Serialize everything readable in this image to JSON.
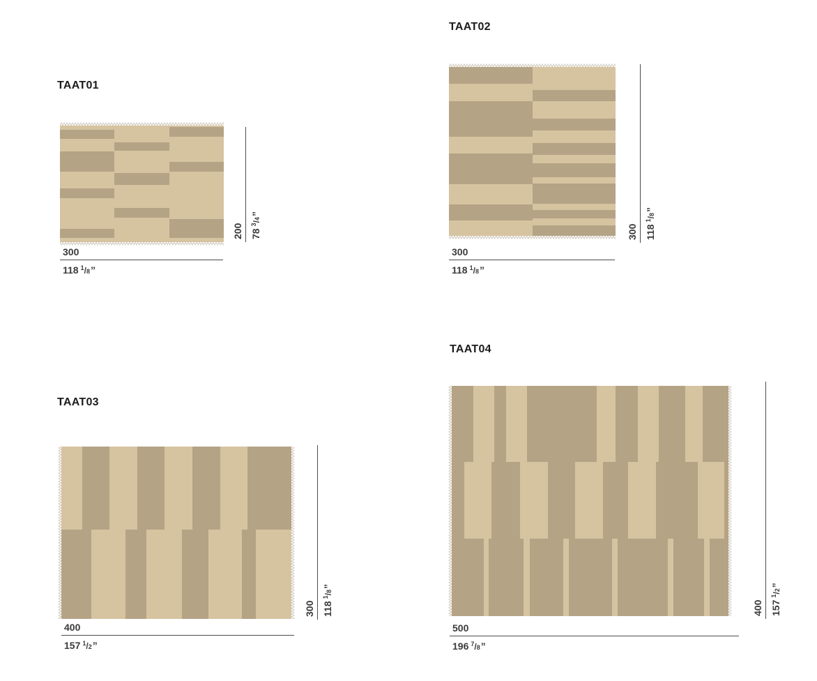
{
  "meta": {
    "colors": {
      "light": "#d6c3a0",
      "dark": "#b5a386",
      "fringe": "#d0cabd",
      "line": "#4a4a4b",
      "text": "#3b3b3c",
      "title": "#1c1c1c"
    },
    "inch_mark": "”",
    "frac_slash": "/"
  },
  "rugs": [
    {
      "title": "TAAT01",
      "width": {
        "cm": "300",
        "in_main": "118",
        "frac_num": "1",
        "frac_den": "8"
      },
      "height": {
        "cm": "200",
        "in_main": "78",
        "frac_num": "3",
        "frac_den": "4"
      },
      "base_color": "light",
      "stripe_color": "dark",
      "fringe_edges": [
        "top",
        "bottom"
      ],
      "stripes": [
        [
          0,
          3.5,
          33.3,
          7.7
        ],
        [
          0,
          22,
          33.3,
          17.8
        ],
        [
          0,
          54,
          33.3,
          8.5
        ],
        [
          0,
          88.4,
          33.3,
          8.3
        ],
        [
          33.3,
          14.5,
          33.6,
          7.2
        ],
        [
          33.3,
          40.8,
          33.6,
          10.3
        ],
        [
          33.3,
          70.4,
          33.6,
          8.6
        ],
        [
          66.9,
          1.4,
          33.1,
          8.3
        ],
        [
          66.9,
          31,
          33.1,
          8.4
        ],
        [
          66.9,
          80.1,
          33.1,
          16.6
        ]
      ]
    },
    {
      "title": "TAAT02",
      "width": {
        "cm": "300",
        "in_main": "118",
        "frac_num": "1",
        "frac_den": "8"
      },
      "height": {
        "cm": "300",
        "in_main": "118",
        "frac_num": "1",
        "frac_den": "8"
      },
      "base_color": "light",
      "stripe_color": "dark",
      "fringe_edges": [
        "top",
        "bottom"
      ],
      "stripes": [
        [
          0,
          0,
          50,
          10
        ],
        [
          0,
          20.3,
          50,
          21
        ],
        [
          0,
          51.1,
          50,
          18.2
        ],
        [
          0,
          81.2,
          50,
          9.8
        ],
        [
          50,
          13.8,
          50,
          6.3
        ],
        [
          50,
          30.5,
          50,
          7
        ],
        [
          50,
          45.2,
          50,
          7
        ],
        [
          50,
          57,
          50,
          8.4
        ],
        [
          50,
          68.9,
          50,
          11.9
        ],
        [
          50,
          84.9,
          50,
          4.9
        ],
        [
          50,
          94,
          50,
          6
        ]
      ]
    },
    {
      "title": "TAAT03",
      "width": {
        "cm": "400",
        "in_main": "157",
        "frac_num": "1",
        "frac_den": "2"
      },
      "height": {
        "cm": "300",
        "in_main": "118",
        "frac_num": "1",
        "frac_den": "8"
      },
      "base_color": "light",
      "stripe_color": "dark",
      "fringe_edges": [
        "left",
        "right"
      ],
      "stripes": [
        [
          9,
          0,
          12,
          48
        ],
        [
          33,
          0,
          12,
          48
        ],
        [
          57,
          0,
          12,
          48
        ],
        [
          81,
          0,
          19,
          48
        ],
        [
          0,
          48,
          13,
          52
        ],
        [
          28,
          48,
          9,
          52
        ],
        [
          52.5,
          48,
          11.5,
          52
        ],
        [
          78.5,
          48,
          6,
          52
        ]
      ]
    },
    {
      "title": "TAAT04",
      "width": {
        "cm": "500",
        "in_main": "196",
        "frac_num": "7",
        "frac_den": "8"
      },
      "height": {
        "cm": "400",
        "in_main": "157",
        "frac_num": "1",
        "frac_den": "2"
      },
      "base_color": "dark",
      "stripe_color": "light",
      "fringe_edges": [
        "left",
        "right"
      ],
      "stripes": [
        [
          7.8,
          0,
          7.5,
          33
        ],
        [
          19.7,
          0,
          7.6,
          33
        ],
        [
          52.5,
          0,
          6.7,
          33
        ],
        [
          67.2,
          0,
          7.5,
          33
        ],
        [
          84.4,
          0,
          6.3,
          33
        ],
        [
          4.6,
          33,
          9.7,
          33.3
        ],
        [
          24.8,
          33,
          10,
          33.3
        ],
        [
          44.5,
          33,
          10.1,
          33.3
        ],
        [
          63.8,
          33,
          10.1,
          33.3
        ],
        [
          89,
          33,
          9.6,
          33.3
        ],
        [
          11.7,
          66.3,
          1.6,
          33.7
        ],
        [
          26,
          66.3,
          2.1,
          33.7
        ],
        [
          40.3,
          66.3,
          2.1,
          33.7
        ],
        [
          57.9,
          66.3,
          2.1,
          33.7
        ],
        [
          78.1,
          66.3,
          2.1,
          33.7
        ],
        [
          91.1,
          66.3,
          2.1,
          33.7
        ]
      ]
    }
  ]
}
